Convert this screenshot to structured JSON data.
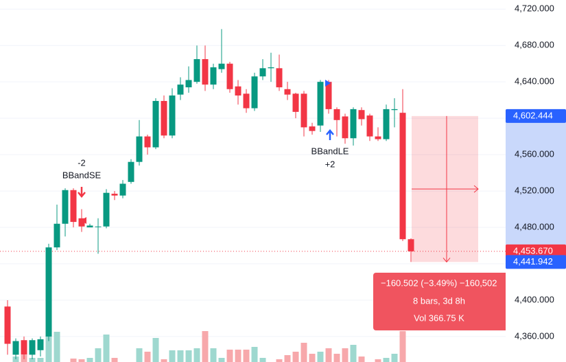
{
  "chart_data": {
    "type": "candlestick",
    "open": [
      4393,
      4340,
      4356,
      4340,
      4345,
      4360,
      4458,
      4484,
      4521,
      4490,
      4480,
      4481,
      4481,
      4517,
      4515,
      4530,
      4552,
      4580,
      4568,
      4619,
      4581,
      4626,
      4634,
      4640,
      4665,
      4637,
      4654,
      4660,
      4635,
      4627,
      4611,
      4646,
      4655,
      4655,
      4632,
      4627,
      4627,
      4591,
      4592,
      4640,
      4610,
      4602,
      4578,
      4609,
      4603,
      4580,
      4577,
      4609,
      4606,
      4467
    ],
    "high": [
      4400,
      4358,
      4360,
      4358,
      4360,
      4462,
      4505,
      4523,
      4523,
      4500,
      4484,
      4490,
      4522,
      4520,
      4532,
      4555,
      4598,
      4582,
      4622,
      4625,
      4633,
      4645,
      4657,
      4680,
      4680,
      4660,
      4698,
      4662,
      4642,
      4632,
      4650,
      4665,
      4672,
      4670,
      4640,
      4628,
      4630,
      4595,
      4642,
      4642,
      4612,
      4605,
      4612,
      4612,
      4605,
      4590,
      4615,
      4622,
      4632,
      4468
    ],
    "low": [
      4340,
      4335,
      4335,
      4335,
      4338,
      4355,
      4455,
      4470,
      4480,
      4475,
      4480,
      4451,
      4479,
      4510,
      4512,
      4528,
      4548,
      4560,
      4566,
      4578,
      4578,
      4620,
      4628,
      4638,
      4630,
      4632,
      4650,
      4628,
      4615,
      4606,
      4608,
      4642,
      4640,
      4630,
      4620,
      4600,
      4580,
      4582,
      4585,
      4605,
      4580,
      4572,
      4570,
      4592,
      4575,
      4575,
      4575,
      4590,
      4465,
      4442
    ],
    "close": [
      4352,
      4355,
      4340,
      4356,
      4357,
      4458,
      4484,
      4521,
      4486,
      4481,
      4482,
      4481,
      4518,
      4515,
      4528,
      4552,
      4580,
      4568,
      4619,
      4581,
      4625,
      4637,
      4642,
      4665,
      4637,
      4656,
      4660,
      4632,
      4625,
      4611,
      4646,
      4655,
      4656,
      4634,
      4626,
      4607,
      4590,
      4586,
      4640,
      4610,
      4598,
      4578,
      4610,
      4599,
      4580,
      4577,
      4610,
      4610,
      4467,
      4453.67
    ],
    "volume": [
      0,
      8,
      10,
      6,
      6,
      40,
      44,
      0,
      5,
      4,
      6,
      20,
      40,
      6,
      0,
      0,
      20,
      15,
      35,
      4,
      17,
      17,
      17,
      20,
      45,
      20,
      6,
      18,
      18,
      18,
      22,
      6,
      0,
      4,
      10,
      15,
      28,
      12,
      15,
      20,
      12,
      20,
      25,
      8,
      0,
      4,
      6,
      12,
      45,
      0
    ],
    "ylim": [
      4332,
      4730
    ],
    "yticks": [
      {
        "value": 4360,
        "label": "4,360.000"
      },
      {
        "value": 4400,
        "label": "4,400.000"
      },
      {
        "value": 4440,
        "label": "4,440.000"
      },
      {
        "value": 4480,
        "label": "4,480.000"
      },
      {
        "value": 4520,
        "label": "4,520.000"
      },
      {
        "value": 4560,
        "label": "4,560.000"
      },
      {
        "value": 4600,
        "label": "4,600.000"
      },
      {
        "value": 4640,
        "label": "4,640.000"
      },
      {
        "value": 4680,
        "label": "4,680.000"
      },
      {
        "value": 4720,
        "label": "4,720.000"
      }
    ],
    "grid": true,
    "up_color": "#089981",
    "down_color": "#f23645",
    "up_volume_color": "#9ed8cf",
    "down_volume_color": "#f7a8ab",
    "price_labels": [
      {
        "value": 4602.444,
        "label": "4,602.444",
        "color": "#2962ff"
      },
      {
        "value": 4453.67,
        "label": "4,453.670",
        "color": "#f23645"
      },
      {
        "value": 4441.942,
        "label": "4,441.942",
        "color": "#2962ff"
      }
    ],
    "signals": [
      {
        "qty": "-2",
        "label": "BBandSE"
      },
      {
        "label": "BBandLE",
        "qty": "+2"
      }
    ],
    "measure": {
      "change": "−160.502 (−3.49%) −160,502",
      "duration": "8 bars, 3d 8h",
      "volume": "Vol 366.75 K"
    }
  }
}
